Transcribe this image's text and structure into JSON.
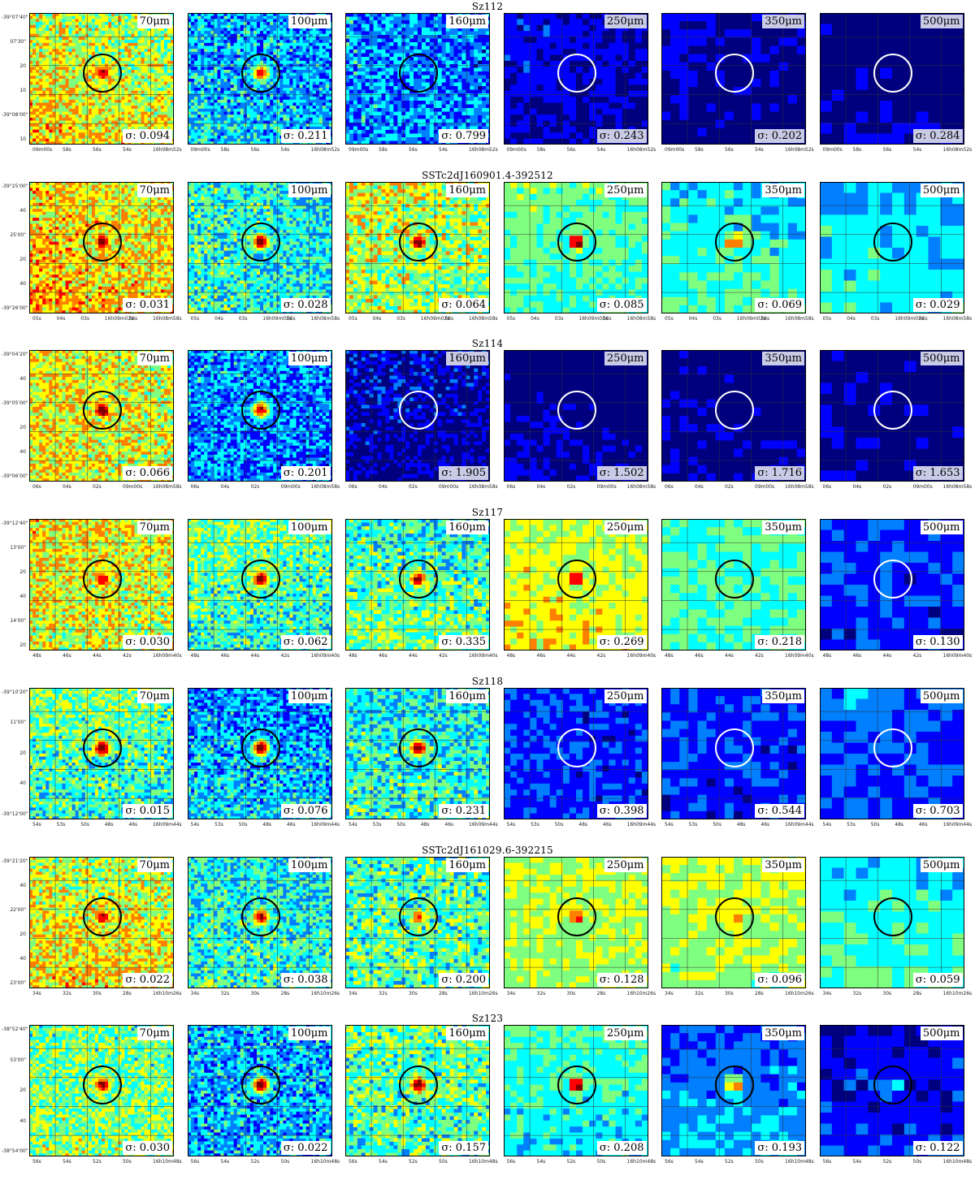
{
  "colormap": [
    "#00007f",
    "#0000ff",
    "#007fff",
    "#00ffff",
    "#7fff7f",
    "#ffff00",
    "#ff7f00",
    "#ff0000",
    "#7f0000"
  ],
  "bands": [
    "70μm",
    "100μm",
    "160μm",
    "250μm",
    "350μm",
    "500μm"
  ],
  "rows": [
    {
      "title": "Sz112",
      "ra_ticks": [
        "09m00s",
        "58s",
        "56s",
        "54s",
        "16h08m52s"
      ],
      "dec_ticks": [
        "-39°07'40\"",
        "07'30\"",
        "20",
        "10",
        "-39°08'00\"",
        "10"
      ],
      "panels": [
        {
          "band": "70μm",
          "sigma": "σ: 0.094",
          "level": 0.6,
          "source": 0.85,
          "circle": "black"
        },
        {
          "band": "100μm",
          "sigma": "σ: 0.211",
          "level": 0.3,
          "source": 0.8,
          "circle": "black"
        },
        {
          "band": "160μm",
          "sigma": "σ: 0.799",
          "level": 0.25,
          "source": 0.0,
          "circle": "black"
        },
        {
          "band": "250μm",
          "sigma": "σ: 0.243",
          "level": 0.08,
          "source": 0.0,
          "circle": "white"
        },
        {
          "band": "350μm",
          "sigma": "σ: 0.202",
          "level": 0.02,
          "source": 0.0,
          "circle": "white"
        },
        {
          "band": "500μm",
          "sigma": "σ: 0.284",
          "level": 0.0,
          "source": 0.0,
          "circle": "white"
        }
      ]
    },
    {
      "title": "SSTc2dJ160901.4-392512",
      "ra_ticks": [
        "05s",
        "04s",
        "03s",
        "16h09m02s",
        "56s",
        "16h08m58s"
      ],
      "dec_ticks": [
        "-39°25'00\"",
        "40",
        "25'00\"",
        "20",
        "40",
        "-39°26'00\""
      ],
      "panels": [
        {
          "band": "70μm",
          "sigma": "σ: 0.031",
          "level": 0.65,
          "source": 0.9,
          "circle": "black"
        },
        {
          "band": "100μm",
          "sigma": "σ: 0.028",
          "level": 0.4,
          "source": 0.95,
          "circle": "black"
        },
        {
          "band": "160μm",
          "sigma": "σ: 0.064",
          "level": 0.55,
          "source": 0.95,
          "circle": "black"
        },
        {
          "band": "250μm",
          "sigma": "σ: 0.085",
          "level": 0.45,
          "source": 1.0,
          "circle": "black"
        },
        {
          "band": "350μm",
          "sigma": "σ: 0.069",
          "level": 0.4,
          "source": 0.85,
          "circle": "black"
        },
        {
          "band": "500μm",
          "sigma": "σ: 0.029",
          "level": 0.35,
          "source": 0.0,
          "circle": "black"
        }
      ]
    },
    {
      "title": "Sz114",
      "ra_ticks": [
        "06s",
        "04s",
        "02s",
        "09m00s",
        "16h08m58s"
      ],
      "dec_ticks": [
        "-39°04'20\"",
        "40",
        "-39°05'00\"",
        "20",
        "40",
        "-39°06'00\""
      ],
      "panels": [
        {
          "band": "70μm",
          "sigma": "σ: 0.066",
          "level": 0.6,
          "source": 0.95,
          "circle": "black"
        },
        {
          "band": "100μm",
          "sigma": "σ: 0.201",
          "level": 0.25,
          "source": 0.9,
          "circle": "black"
        },
        {
          "band": "160μm",
          "sigma": "σ: 1.905",
          "level": 0.03,
          "source": 0.0,
          "circle": "white"
        },
        {
          "band": "250μm",
          "sigma": "σ: 1.502",
          "level": 0.0,
          "source": 0.0,
          "circle": "white"
        },
        {
          "band": "350μm",
          "sigma": "σ: 1.716",
          "level": 0.0,
          "source": 0.0,
          "circle": "white"
        },
        {
          "band": "500μm",
          "sigma": "σ: 1.653",
          "level": 0.0,
          "source": 0.0,
          "circle": "white"
        }
      ]
    },
    {
      "title": "Sz117",
      "ra_ticks": [
        "48s",
        "46s",
        "44s",
        "42s",
        "16h09m40s"
      ],
      "dec_ticks": [
        "-39°12'40\"",
        "13'00\"",
        "20",
        "40",
        "14'00\"",
        "20"
      ],
      "panels": [
        {
          "band": "70μm",
          "sigma": "σ: 0.030",
          "level": 0.6,
          "source": 0.85,
          "circle": "black"
        },
        {
          "band": "100μm",
          "sigma": "σ: 0.062",
          "level": 0.45,
          "source": 0.95,
          "circle": "black"
        },
        {
          "band": "160μm",
          "sigma": "σ: 0.335",
          "level": 0.45,
          "source": 0.9,
          "circle": "black"
        },
        {
          "band": "250μm",
          "sigma": "σ: 0.269",
          "level": 0.6,
          "source": 0.9,
          "circle": "black"
        },
        {
          "band": "350μm",
          "sigma": "σ: 0.218",
          "level": 0.45,
          "source": 0.0,
          "circle": "black"
        },
        {
          "band": "500μm",
          "sigma": "σ: 0.130",
          "level": 0.15,
          "source": 0.0,
          "circle": "white"
        }
      ]
    },
    {
      "title": "Sz118",
      "ra_ticks": [
        "54s",
        "53s",
        "50s",
        "48s",
        "46s",
        "16h09m44s"
      ],
      "dec_ticks": [
        "-39°10'20\"",
        "11'00\"",
        "20",
        "40",
        "-39°12'00\""
      ],
      "panels": [
        {
          "band": "70μm",
          "sigma": "σ: 0.015",
          "level": 0.45,
          "source": 1.0,
          "circle": "black"
        },
        {
          "band": "100μm",
          "sigma": "σ: 0.076",
          "level": 0.3,
          "source": 0.95,
          "circle": "black"
        },
        {
          "band": "160μm",
          "sigma": "σ: 0.231",
          "level": 0.4,
          "source": 0.95,
          "circle": "black"
        },
        {
          "band": "250μm",
          "sigma": "σ: 0.398",
          "level": 0.15,
          "source": 0.3,
          "circle": "white"
        },
        {
          "band": "350μm",
          "sigma": "σ: 0.544",
          "level": 0.15,
          "source": 0.25,
          "circle": "white"
        },
        {
          "band": "500μm",
          "sigma": "σ: 0.703",
          "level": 0.2,
          "source": 0.0,
          "circle": "white"
        }
      ]
    },
    {
      "title": "SSTc2dJ161029.6-392215",
      "ra_ticks": [
        "34s",
        "32s",
        "30s",
        "28s",
        "16h10m26s"
      ],
      "dec_ticks": [
        "-39°21'20\"",
        "40",
        "22'00\"",
        "20",
        "40",
        "23'00\""
      ],
      "panels": [
        {
          "band": "70μm",
          "sigma": "σ: 0.022",
          "level": 0.6,
          "source": 0.85,
          "circle": "black"
        },
        {
          "band": "100μm",
          "sigma": "σ: 0.038",
          "level": 0.4,
          "source": 0.9,
          "circle": "black"
        },
        {
          "band": "160μm",
          "sigma": "σ: 0.200",
          "level": 0.45,
          "source": 0.75,
          "circle": "black"
        },
        {
          "band": "250μm",
          "sigma": "σ: 0.128",
          "level": 0.55,
          "source": 0.8,
          "circle": "black"
        },
        {
          "band": "350μm",
          "sigma": "σ: 0.096",
          "level": 0.55,
          "source": 0.7,
          "circle": "black"
        },
        {
          "band": "500μm",
          "sigma": "σ: 0.059",
          "level": 0.4,
          "source": 0.0,
          "circle": "black"
        }
      ]
    },
    {
      "title": "Sz123",
      "ra_ticks": [
        "56s",
        "54s",
        "52s",
        "50s",
        "16h10m48s"
      ],
      "dec_ticks": [
        "-38°52'40\"",
        "53'00\"",
        "20",
        "40",
        "-38°54'00\""
      ],
      "panels": [
        {
          "band": "70μm",
          "sigma": "σ: 0.030",
          "level": 0.5,
          "source": 0.9,
          "circle": "black"
        },
        {
          "band": "100μm",
          "sigma": "σ: 0.022",
          "level": 0.3,
          "source": 0.95,
          "circle": "black"
        },
        {
          "band": "160μm",
          "sigma": "σ: 0.157",
          "level": 0.45,
          "source": 1.0,
          "circle": "black"
        },
        {
          "band": "250μm",
          "sigma": "σ: 0.208",
          "level": 0.4,
          "source": 1.0,
          "circle": "black"
        },
        {
          "band": "350μm",
          "sigma": "σ: 0.193",
          "level": 0.25,
          "source": 0.85,
          "circle": "black"
        },
        {
          "band": "500μm",
          "sigma": "σ: 0.122",
          "level": 0.12,
          "source": 0.45,
          "circle": "black"
        }
      ]
    }
  ]
}
